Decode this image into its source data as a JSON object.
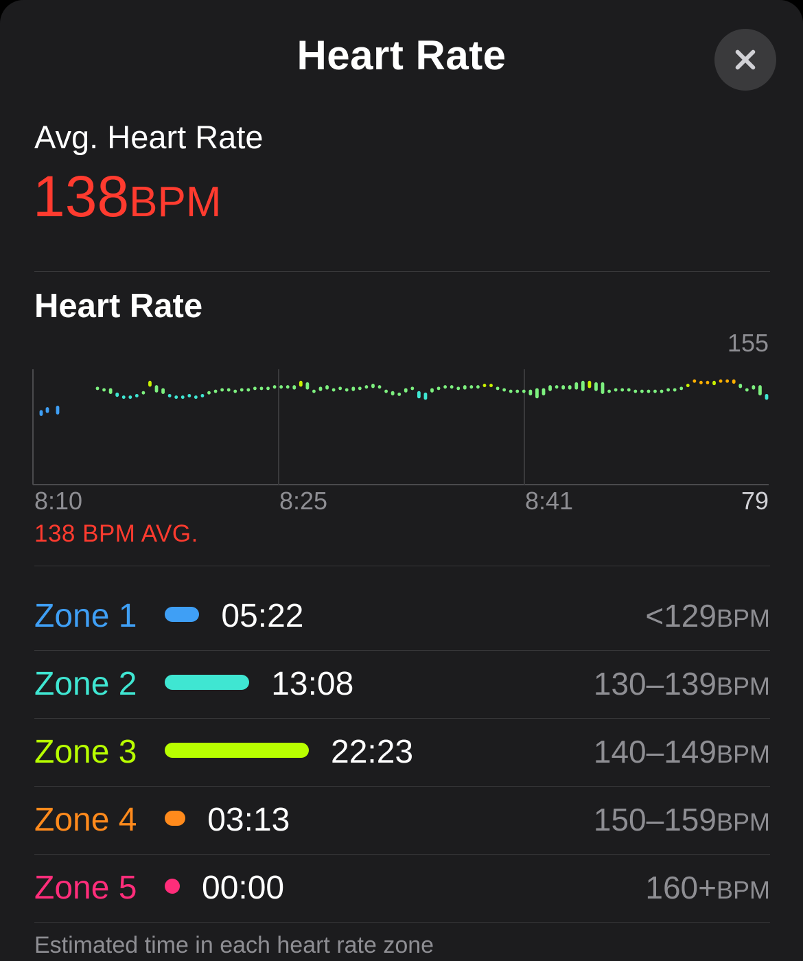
{
  "header": {
    "title": "Heart Rate",
    "close_icon": "close-icon"
  },
  "summary": {
    "label": "Avg. Heart Rate",
    "value": "138",
    "unit": "BPM",
    "accent": "#ff3b2f"
  },
  "chart_data": {
    "type": "bar",
    "title": "Heart Rate",
    "x_labels": [
      "8:10",
      "8:25",
      "8:41"
    ],
    "y_max_label": "155",
    "y_min_label": "79",
    "ylim": [
      79,
      155
    ],
    "avg_label": "138 BPM AVG.",
    "series": [
      {
        "values": [
          [
            125,
            129
          ],
          [
            127,
            131
          ],
          [
            126,
            132
          ],
          [
            143,
            145
          ],
          [
            142,
            144
          ],
          [
            140,
            144
          ],
          [
            138,
            141
          ],
          [
            137,
            139
          ],
          [
            137,
            139
          ],
          [
            138,
            140
          ],
          [
            140,
            142
          ],
          [
            145,
            149
          ],
          [
            141,
            146
          ],
          [
            140,
            144
          ],
          [
            138,
            140
          ],
          [
            137,
            139
          ],
          [
            137,
            139
          ],
          [
            138,
            140
          ],
          [
            137,
            139
          ],
          [
            138,
            140
          ],
          [
            140,
            142
          ],
          [
            141,
            143
          ],
          [
            142,
            144
          ],
          [
            142,
            144
          ],
          [
            141,
            143
          ],
          [
            142,
            144
          ],
          [
            142,
            144
          ],
          [
            143,
            145
          ],
          [
            143,
            145
          ],
          [
            143,
            145
          ],
          [
            144,
            146
          ],
          [
            144,
            146
          ],
          [
            144,
            146
          ],
          [
            143,
            146
          ],
          [
            145,
            149
          ],
          [
            143,
            148
          ],
          [
            141,
            143
          ],
          [
            142,
            145
          ],
          [
            143,
            146
          ],
          [
            142,
            144
          ],
          [
            143,
            145
          ],
          [
            142,
            144
          ],
          [
            142,
            145
          ],
          [
            143,
            145
          ],
          [
            144,
            146
          ],
          [
            144,
            147
          ],
          [
            144,
            146
          ],
          [
            141,
            143
          ],
          [
            139,
            142
          ],
          [
            139,
            141
          ],
          [
            141,
            144
          ],
          [
            143,
            145
          ],
          [
            137,
            142
          ],
          [
            136,
            141
          ],
          [
            141,
            144
          ],
          [
            143,
            145
          ],
          [
            144,
            146
          ],
          [
            144,
            146
          ],
          [
            143,
            145
          ],
          [
            143,
            146
          ],
          [
            144,
            146
          ],
          [
            144,
            146
          ],
          [
            145,
            147
          ],
          [
            145,
            147
          ],
          [
            143,
            145
          ],
          [
            142,
            144
          ],
          [
            141,
            143
          ],
          [
            141,
            143
          ],
          [
            141,
            143
          ],
          [
            139,
            143
          ],
          [
            137,
            144
          ],
          [
            139,
            144
          ],
          [
            142,
            146
          ],
          [
            144,
            146
          ],
          [
            143,
            146
          ],
          [
            143,
            146
          ],
          [
            143,
            148
          ],
          [
            142,
            149
          ],
          [
            144,
            149
          ],
          [
            142,
            148
          ],
          [
            140,
            148
          ],
          [
            141,
            143
          ],
          [
            142,
            144
          ],
          [
            142,
            144
          ],
          [
            142,
            144
          ],
          [
            141,
            143
          ],
          [
            141,
            143
          ],
          [
            141,
            143
          ],
          [
            141,
            143
          ],
          [
            141,
            143
          ],
          [
            142,
            144
          ],
          [
            142,
            144
          ],
          [
            143,
            145
          ],
          [
            145,
            147
          ],
          [
            148,
            150
          ],
          [
            147,
            149
          ],
          [
            147,
            149
          ],
          [
            146,
            149
          ],
          [
            148,
            150
          ],
          [
            148,
            150
          ],
          [
            147,
            150
          ],
          [
            144,
            147
          ],
          [
            142,
            144
          ],
          [
            143,
            146
          ],
          [
            139,
            146
          ],
          [
            136,
            140
          ]
        ]
      }
    ]
  },
  "zones": [
    {
      "label": "Zone 1",
      "time": "05:22",
      "range": "<129",
      "unit": "BPM",
      "color": "#3f9ff5",
      "minutes": 5.37
    },
    {
      "label": "Zone 2",
      "time": "13:08",
      "range": "130–139",
      "unit": "BPM",
      "color": "#3fe6d2",
      "minutes": 13.13
    },
    {
      "label": "Zone 3",
      "time": "22:23",
      "range": "140–149",
      "unit": "BPM",
      "color": "#b8ff00",
      "minutes": 22.38
    },
    {
      "label": "Zone 4",
      "time": "03:13",
      "range": "150–159",
      "unit": "BPM",
      "color": "#ff8a1c",
      "minutes": 3.22
    },
    {
      "label": "Zone 5",
      "time": "00:00",
      "range": "160+",
      "unit": "BPM",
      "color": "#ff2d7a",
      "minutes": 0
    }
  ],
  "footnote": "Estimated time in each heart rate zone"
}
